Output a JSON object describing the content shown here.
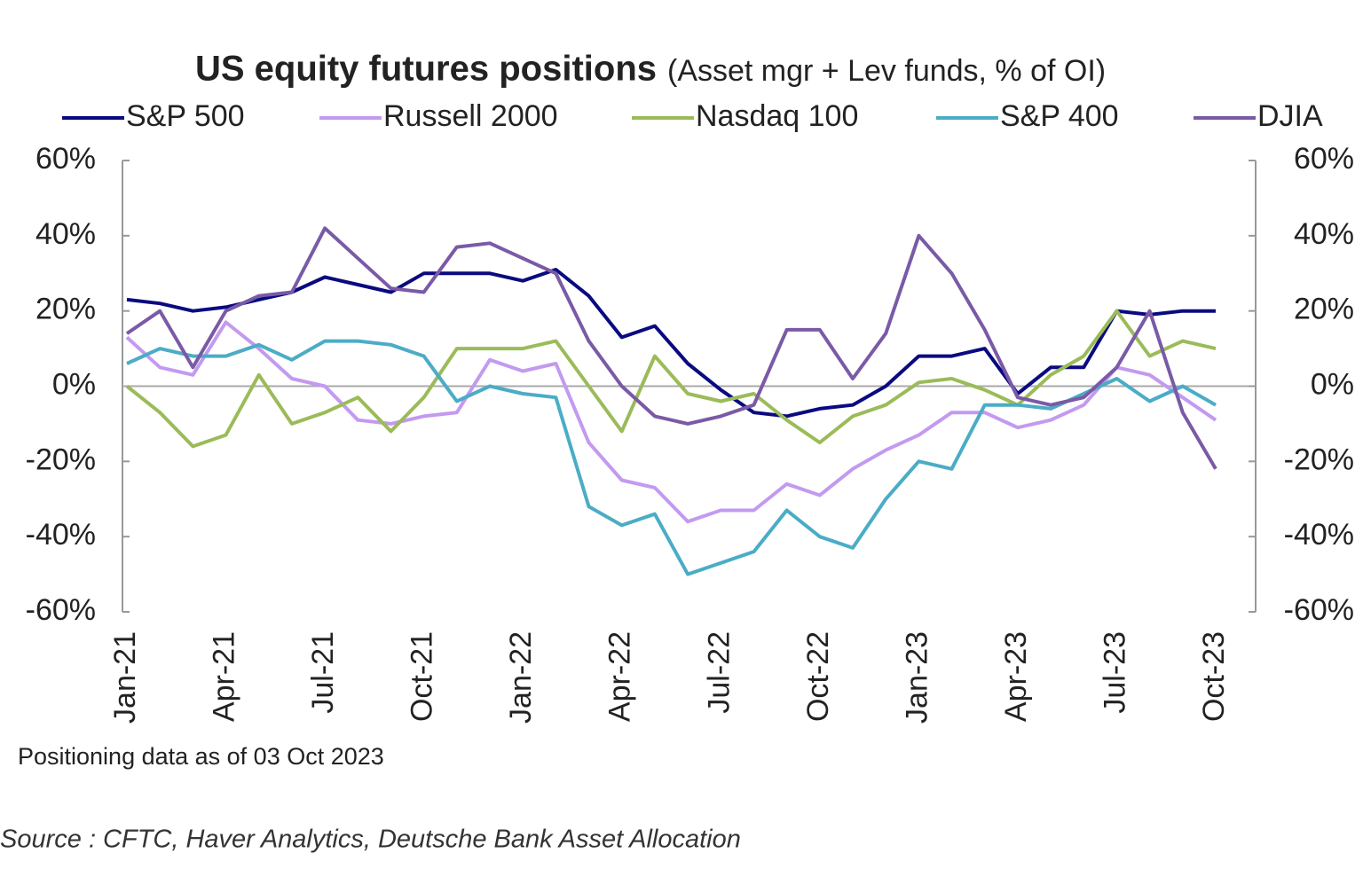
{
  "chart_data": {
    "type": "line",
    "title": "US equity futures positions",
    "subtitle": "(Asset mgr + Lev funds, % of OI)",
    "note": "Positioning data as of 03 Oct 2023",
    "source": "Source : CFTC, Haver Analytics, Deutsche Bank Asset Allocation",
    "categories": [
      "Jan-21",
      null,
      null,
      "Apr-21",
      null,
      null,
      "Jul-21",
      null,
      null,
      "Oct-21",
      null,
      null,
      "Jan-22",
      null,
      null,
      "Apr-22",
      null,
      null,
      "Jul-22",
      null,
      null,
      "Oct-22",
      null,
      null,
      "Jan-23",
      null,
      null,
      "Apr-23",
      null,
      null,
      "Jul-23",
      null,
      null,
      "Oct-23"
    ],
    "ylim": [
      -60,
      60
    ],
    "yticks": [
      {
        "value": 60,
        "label": "60%"
      },
      {
        "value": 40,
        "label": "40%"
      },
      {
        "value": 20,
        "label": "20%"
      },
      {
        "value": 0,
        "label": "0%"
      },
      {
        "value": -20,
        "label": "-20%"
      },
      {
        "value": -40,
        "label": "-40%"
      },
      {
        "value": -60,
        "label": "-60%"
      }
    ],
    "y2lim": [
      -60,
      60
    ],
    "y2ticks": [
      {
        "value": 60,
        "label": "60%"
      },
      {
        "value": 40,
        "label": "40%"
      },
      {
        "value": 20,
        "label": "20%"
      },
      {
        "value": 0,
        "label": "0%"
      },
      {
        "value": -20,
        "label": "-20%"
      },
      {
        "value": -40,
        "label": "-40%"
      },
      {
        "value": -60,
        "label": "-60%"
      }
    ],
    "legend": "top",
    "series": [
      {
        "name": "S&P 500",
        "color": "#0a0a80",
        "values": [
          23,
          22,
          20,
          21,
          23,
          25,
          29,
          27,
          25,
          30,
          30,
          30,
          28,
          31,
          24,
          13,
          16,
          6,
          -1,
          -7,
          -8,
          -6,
          -5,
          0,
          8,
          8,
          10,
          -2,
          5,
          5,
          20,
          19,
          20,
          20
        ]
      },
      {
        "name": "Russell 2000",
        "color": "#c39af0",
        "values": [
          13,
          5,
          3,
          17,
          10,
          2,
          0,
          -9,
          -10,
          -8,
          -7,
          7,
          4,
          6,
          -15,
          -25,
          -27,
          -36,
          -33,
          -33,
          -26,
          -29,
          -22,
          -17,
          -13,
          -7,
          -7,
          -11,
          -9,
          -5,
          5,
          3,
          -3,
          -9
        ]
      },
      {
        "name": "Nasdaq 100",
        "color": "#9bbb59",
        "values": [
          0,
          -7,
          -16,
          -13,
          3,
          -10,
          -7,
          -3,
          -12,
          -3,
          10,
          10,
          10,
          12,
          0,
          -12,
          8,
          -2,
          -4,
          -2,
          -9,
          -15,
          -8,
          -5,
          1,
          2,
          -1,
          -5,
          3,
          8,
          20,
          8,
          12,
          10
        ]
      },
      {
        "name": "S&P 400",
        "color": "#4bacc6",
        "values": [
          6,
          10,
          8,
          8,
          11,
          7,
          12,
          12,
          11,
          8,
          -4,
          0,
          -2,
          -3,
          -32,
          -37,
          -34,
          -50,
          -47,
          -44,
          -33,
          -40,
          -43,
          -30,
          -20,
          -22,
          -5,
          -5,
          -6,
          -2,
          2,
          -4,
          0,
          -5
        ]
      },
      {
        "name": "DJIA",
        "color": "#7a5aa6",
        "values": [
          14,
          20,
          5,
          20,
          24,
          25,
          42,
          34,
          26,
          25,
          37,
          38,
          34,
          30,
          12,
          0,
          -8,
          -10,
          -8,
          -5,
          15,
          15,
          2,
          14,
          40,
          30,
          15,
          -3,
          -5,
          -3,
          5,
          20,
          -7,
          -22
        ]
      }
    ]
  }
}
